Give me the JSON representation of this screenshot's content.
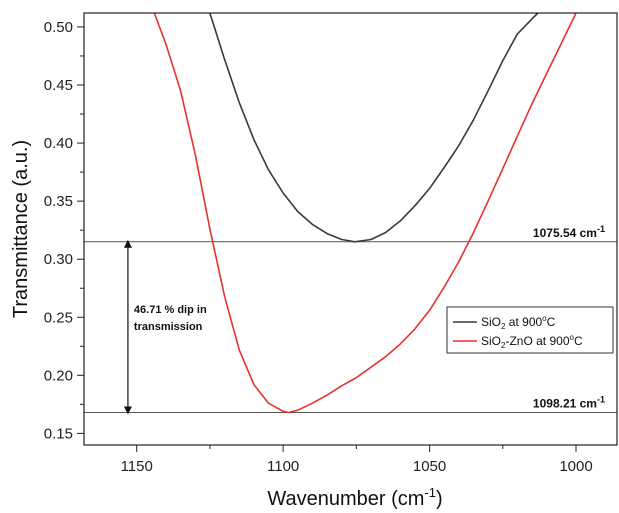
{
  "chart_data": {
    "type": "line",
    "title": "",
    "xlabel": "Wavenumber (cm",
    "xlabel_sup": "-1",
    "xlabel_end": ")",
    "ylabel": "Transmittance (a.u.)",
    "xlim": [
      1168,
      986
    ],
    "ylim": [
      0.14,
      0.512
    ],
    "x_reversed": true,
    "x_ticks": [
      1150,
      1100,
      1050,
      1000
    ],
    "y_ticks": [
      0.15,
      0.2,
      0.25,
      0.3,
      0.35,
      0.4,
      0.45,
      0.5
    ],
    "y_tick_labels": [
      "0.15",
      "0.20",
      "0.25",
      "0.30",
      "0.35",
      "0.40",
      "0.45",
      "0.50"
    ],
    "grid": false,
    "legend_position": "center-right",
    "series": [
      {
        "name_main": "SiO",
        "name_sub": "2",
        "name_mid": " at 900",
        "name_sup": "o",
        "name_end": "C",
        "color": "#3a3a3a",
        "x": [
          1125,
          1120,
          1115,
          1110,
          1105,
          1100,
          1095,
          1090,
          1085,
          1080,
          1075.54,
          1070,
          1065,
          1060,
          1055,
          1050,
          1045,
          1040,
          1035,
          1030,
          1025,
          1020,
          1015,
          1013
        ],
        "y": [
          0.512,
          0.472,
          0.435,
          0.403,
          0.377,
          0.357,
          0.341,
          0.33,
          0.322,
          0.317,
          0.315,
          0.317,
          0.323,
          0.333,
          0.346,
          0.361,
          0.379,
          0.398,
          0.42,
          0.445,
          0.471,
          0.494,
          0.507,
          0.512
        ]
      },
      {
        "name_main": "SiO",
        "name_sub": "2",
        "name_mid": "-ZnO at 900",
        "name_sup": "o",
        "name_end": "C",
        "color": "#e8312f",
        "x": [
          1144,
          1140,
          1135,
          1130,
          1125,
          1120,
          1115,
          1110,
          1105,
          1100,
          1098.21,
          1095,
          1090,
          1085,
          1080,
          1075,
          1070,
          1065,
          1060,
          1055,
          1050,
          1045,
          1040,
          1035,
          1030,
          1025,
          1020,
          1015,
          1010,
          1005,
          1000
        ],
        "y": [
          0.512,
          0.485,
          0.445,
          0.39,
          0.326,
          0.268,
          0.222,
          0.192,
          0.176,
          0.169,
          0.168,
          0.17,
          0.176,
          0.183,
          0.191,
          0.198,
          0.207,
          0.216,
          0.227,
          0.24,
          0.256,
          0.276,
          0.298,
          0.323,
          0.35,
          0.378,
          0.406,
          0.434,
          0.46,
          0.486,
          0.512
        ]
      }
    ],
    "reference_lines": [
      {
        "y": 0.315,
        "label_main": "1075.54 cm",
        "label_sup": "-1"
      },
      {
        "y": 0.168,
        "label_main": "1098.21 cm",
        "label_sup": "-1"
      }
    ],
    "annotation": {
      "line1": "46.71 % dip in",
      "line2": "transmission",
      "arrow_x": 1153,
      "y_top": 0.315,
      "y_bottom": 0.168
    }
  }
}
